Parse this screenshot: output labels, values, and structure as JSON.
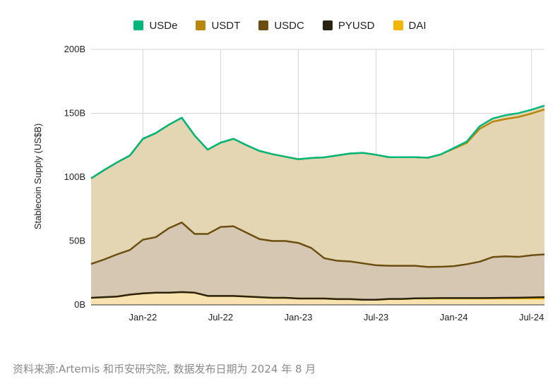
{
  "chart_data": {
    "type": "area",
    "ylabel": "Stablecoin Supply (US$B)",
    "ylim": [
      0,
      200
    ],
    "yticks": [
      0,
      50,
      100,
      150,
      200
    ],
    "ytick_labels": [
      "0B",
      "50B",
      "100B",
      "150B",
      "200B"
    ],
    "x": [
      "2021-09",
      "2021-10",
      "2021-11",
      "2021-12",
      "2022-01",
      "2022-02",
      "2022-03",
      "2022-04",
      "2022-05",
      "2022-06",
      "2022-07",
      "2022-08",
      "2022-09",
      "2022-10",
      "2022-11",
      "2022-12",
      "2023-01",
      "2023-02",
      "2023-03",
      "2023-04",
      "2023-05",
      "2023-06",
      "2023-07",
      "2023-08",
      "2023-09",
      "2023-10",
      "2023-11",
      "2023-12",
      "2024-01",
      "2024-02",
      "2024-03",
      "2024-04",
      "2024-05",
      "2024-06",
      "2024-07",
      "2024-08"
    ],
    "x_tick_labels": [
      "Jan-22",
      "Jul-22",
      "Jan-23",
      "Jul-23",
      "Jan-24",
      "Jul-24"
    ],
    "x_tick_positions": [
      "2022-01",
      "2022-07",
      "2023-01",
      "2023-07",
      "2024-01",
      "2024-07"
    ],
    "grid": true,
    "legend_position": "top-center",
    "series": [
      {
        "name": "DAI",
        "color": "#F2B705",
        "values": [
          5.5,
          6.0,
          6.5,
          8.0,
          9.0,
          9.5,
          9.5,
          10.0,
          9.5,
          7.0,
          7.0,
          7.0,
          6.5,
          6.0,
          5.5,
          5.5,
          5.0,
          5.0,
          5.0,
          4.5,
          4.5,
          4.0,
          4.0,
          4.5,
          4.5,
          5.0,
          5.0,
          5.0,
          5.0,
          5.0,
          5.0,
          5.0,
          5.0,
          5.0,
          5.0,
          5.0
        ]
      },
      {
        "name": "PYUSD",
        "color": "#2B2210",
        "values": [
          0,
          0,
          0,
          0,
          0,
          0,
          0,
          0,
          0,
          0,
          0,
          0,
          0,
          0,
          0,
          0,
          0,
          0,
          0,
          0,
          0,
          0,
          0,
          0.1,
          0.1,
          0.1,
          0.2,
          0.3,
          0.3,
          0.3,
          0.3,
          0.4,
          0.5,
          0.6,
          0.8,
          1.0
        ]
      },
      {
        "name": "USDC",
        "color": "#6B4E10",
        "values": [
          26.5,
          29.5,
          33.0,
          35.0,
          42.0,
          43.5,
          50.5,
          54.5,
          46.0,
          48.5,
          54.0,
          54.5,
          50.0,
          45.5,
          44.5,
          44.5,
          43.5,
          39.5,
          31.5,
          30.0,
          29.5,
          28.5,
          27.0,
          26.0,
          26.0,
          25.5,
          24.5,
          24.5,
          25.0,
          26.5,
          28.5,
          32.0,
          32.5,
          32.0,
          33.0,
          33.5
        ]
      },
      {
        "name": "USDT",
        "color": "#B8860B",
        "values": [
          67.0,
          70.0,
          72.0,
          74.0,
          79.0,
          81.5,
          81.0,
          82.0,
          77.0,
          66.0,
          66.0,
          68.5,
          68.5,
          69.0,
          68.0,
          66.0,
          65.5,
          70.5,
          79.0,
          82.5,
          84.5,
          86.5,
          86.5,
          85.0,
          85.0,
          85.0,
          85.5,
          88.0,
          92.0,
          95.0,
          104.0,
          106.0,
          107.5,
          109.5,
          111.0,
          113.5
        ]
      },
      {
        "name": "USDe",
        "color": "#00B77A",
        "values": [
          0,
          0,
          0,
          0,
          0,
          0,
          0,
          0,
          0,
          0,
          0,
          0,
          0,
          0,
          0,
          0,
          0,
          0,
          0,
          0,
          0,
          0,
          0,
          0,
          0,
          0,
          0,
          0,
          0.5,
          1.0,
          2.0,
          2.5,
          3.0,
          3.0,
          3.0,
          3.0
        ]
      }
    ]
  },
  "legend": {
    "items": [
      {
        "label": "USDe",
        "color": "#00B77A"
      },
      {
        "label": "USDT",
        "color": "#B8860B"
      },
      {
        "label": "USDC",
        "color": "#6B4E10"
      },
      {
        "label": "PYUSD",
        "color": "#2B2210"
      },
      {
        "label": "DAI",
        "color": "#F2B705"
      }
    ]
  },
  "source_note": "资料来源:Artemis 和币安研究院, 数据发布日期为 2024 年 8 月"
}
